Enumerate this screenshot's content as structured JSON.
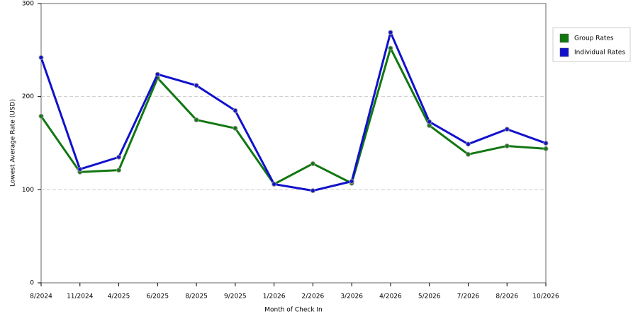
{
  "chart_data": {
    "type": "line",
    "x_label": "Month of Check In",
    "y_label": "Lowest Average Rate (USD)",
    "categories": [
      "8/2024",
      "11/2024",
      "4/2025",
      "6/2025",
      "8/2025",
      "9/2025",
      "1/2026",
      "2/2026",
      "3/2026",
      "4/2026",
      "5/2026",
      "7/2026",
      "8/2026",
      "10/2026"
    ],
    "series": [
      {
        "name": "Group Rates",
        "color": "#117711",
        "values": [
          179,
          119,
          121,
          220,
          175,
          166,
          106,
          128,
          107,
          252,
          169,
          138,
          147,
          144
        ]
      },
      {
        "name": "Individual Rates",
        "color": "#1111cc",
        "values": [
          242,
          122,
          135,
          224,
          212,
          185,
          106,
          99,
          109,
          269,
          173,
          149,
          165,
          150
        ]
      }
    ],
    "ylim": [
      0,
      300
    ],
    "yticks": [
      0,
      100,
      200,
      300
    ],
    "grid": true,
    "legend": "right"
  }
}
